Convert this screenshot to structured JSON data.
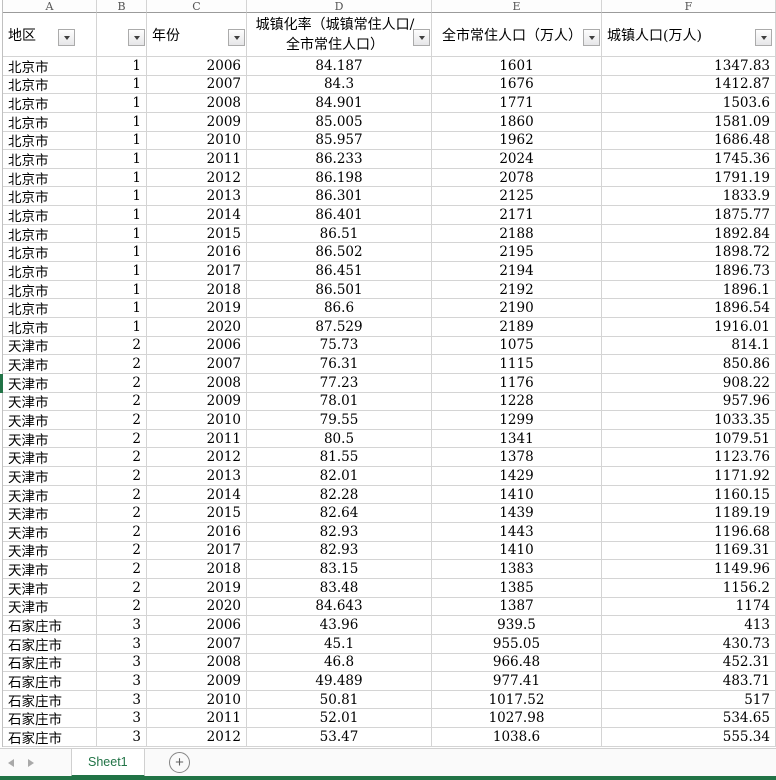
{
  "columns": {
    "letters": [
      "A",
      "B",
      "C",
      "D",
      "E",
      "F"
    ],
    "headers": [
      {
        "label": "地区"
      },
      {
        "label": ""
      },
      {
        "label": "年份"
      },
      {
        "label": "城镇化率（城镇常住人口/全市常住人口）"
      },
      {
        "label": "全市常住人口（万人）"
      },
      {
        "label": "城镇人口(万人)"
      }
    ]
  },
  "rows": [
    [
      "北京市",
      "1",
      "2006",
      "84.187",
      "1601",
      "1347.83"
    ],
    [
      "北京市",
      "1",
      "2007",
      "84.3",
      "1676",
      "1412.87"
    ],
    [
      "北京市",
      "1",
      "2008",
      "84.901",
      "1771",
      "1503.6"
    ],
    [
      "北京市",
      "1",
      "2009",
      "85.005",
      "1860",
      "1581.09"
    ],
    [
      "北京市",
      "1",
      "2010",
      "85.957",
      "1962",
      "1686.48"
    ],
    [
      "北京市",
      "1",
      "2011",
      "86.233",
      "2024",
      "1745.36"
    ],
    [
      "北京市",
      "1",
      "2012",
      "86.198",
      "2078",
      "1791.19"
    ],
    [
      "北京市",
      "1",
      "2013",
      "86.301",
      "2125",
      "1833.9"
    ],
    [
      "北京市",
      "1",
      "2014",
      "86.401",
      "2171",
      "1875.77"
    ],
    [
      "北京市",
      "1",
      "2015",
      "86.51",
      "2188",
      "1892.84"
    ],
    [
      "北京市",
      "1",
      "2016",
      "86.502",
      "2195",
      "1898.72"
    ],
    [
      "北京市",
      "1",
      "2017",
      "86.451",
      "2194",
      "1896.73"
    ],
    [
      "北京市",
      "1",
      "2018",
      "86.501",
      "2192",
      "1896.1"
    ],
    [
      "北京市",
      "1",
      "2019",
      "86.6",
      "2190",
      "1896.54"
    ],
    [
      "北京市",
      "1",
      "2020",
      "87.529",
      "2189",
      "1916.01"
    ],
    [
      "天津市",
      "2",
      "2006",
      "75.73",
      "1075",
      "814.1"
    ],
    [
      "天津市",
      "2",
      "2007",
      "76.31",
      "1115",
      "850.86"
    ],
    [
      "天津市",
      "2",
      "2008",
      "77.23",
      "1176",
      "908.22"
    ],
    [
      "天津市",
      "2",
      "2009",
      "78.01",
      "1228",
      "957.96"
    ],
    [
      "天津市",
      "2",
      "2010",
      "79.55",
      "1299",
      "1033.35"
    ],
    [
      "天津市",
      "2",
      "2011",
      "80.5",
      "1341",
      "1079.51"
    ],
    [
      "天津市",
      "2",
      "2012",
      "81.55",
      "1378",
      "1123.76"
    ],
    [
      "天津市",
      "2",
      "2013",
      "82.01",
      "1429",
      "1171.92"
    ],
    [
      "天津市",
      "2",
      "2014",
      "82.28",
      "1410",
      "1160.15"
    ],
    [
      "天津市",
      "2",
      "2015",
      "82.64",
      "1439",
      "1189.19"
    ],
    [
      "天津市",
      "2",
      "2016",
      "82.93",
      "1443",
      "1196.68"
    ],
    [
      "天津市",
      "2",
      "2017",
      "82.93",
      "1410",
      "1169.31"
    ],
    [
      "天津市",
      "2",
      "2018",
      "83.15",
      "1383",
      "1149.96"
    ],
    [
      "天津市",
      "2",
      "2019",
      "83.48",
      "1385",
      "1156.2"
    ],
    [
      "天津市",
      "2",
      "2020",
      "84.643",
      "1387",
      "1174"
    ],
    [
      "石家庄市",
      "3",
      "2006",
      "43.96",
      "939.5",
      "413"
    ],
    [
      "石家庄市",
      "3",
      "2007",
      "45.1",
      "955.05",
      "430.73"
    ],
    [
      "石家庄市",
      "3",
      "2008",
      "46.8",
      "966.48",
      "452.31"
    ],
    [
      "石家庄市",
      "3",
      "2009",
      "49.489",
      "977.41",
      "483.71"
    ],
    [
      "石家庄市",
      "3",
      "2010",
      "50.81",
      "1017.52",
      "517"
    ],
    [
      "石家庄市",
      "3",
      "2011",
      "52.01",
      "1027.98",
      "534.65"
    ],
    [
      "石家庄市",
      "3",
      "2012",
      "53.47",
      "1038.6",
      "555.34"
    ]
  ],
  "selection": {
    "marker_row_index": 17
  },
  "sheet_bar": {
    "active_tab": "Sheet1",
    "add_label": "+"
  },
  "colors": {
    "excel_green": "#217346",
    "grid_line": "#d4d4d4"
  },
  "icons": {
    "filter": "filter-dropdown-icon",
    "prev": "prev-sheets-arrow-icon",
    "next": "next-sheets-arrow-icon",
    "add": "add-sheet-plus-icon"
  }
}
